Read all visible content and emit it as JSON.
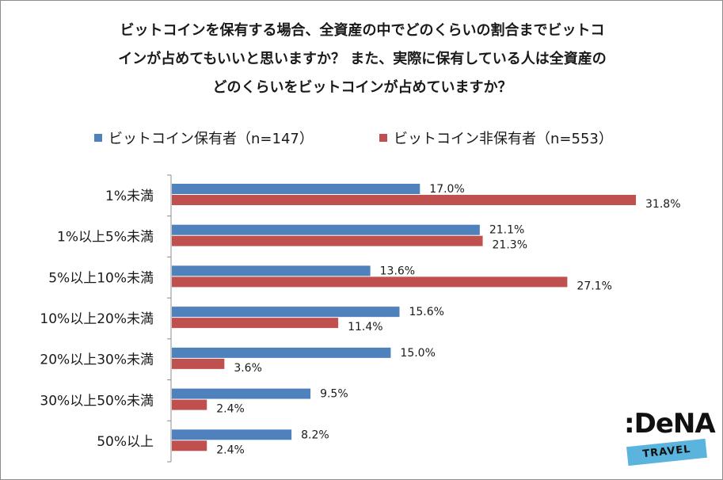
{
  "chart_data": {
    "type": "bar",
    "orientation": "horizontal",
    "title_lines": [
      "ビットコインを保有する場合、全資産の中でどのくらいの割合までビットコ",
      "インが占めてもいいと思いますか？ また、実際に保有している人は全資産の",
      "どのくらいをビットコインが占めていますか？"
    ],
    "categories": [
      "1%未満",
      "1%以上5%未満",
      "5%以上10%未満",
      "10%以上20%未満",
      "20%以上30%未満",
      "30%以上50%未満",
      "50%以上"
    ],
    "series": [
      {
        "name": "ビットコイン保有者（n=147）",
        "color": "#4f81bd",
        "values": [
          17.0,
          21.1,
          13.6,
          15.6,
          15.0,
          9.5,
          8.2
        ]
      },
      {
        "name": "ビットコイン非保有者（n=553）",
        "color": "#c0504d",
        "values": [
          31.8,
          21.3,
          27.1,
          11.4,
          3.6,
          2.4,
          2.4
        ]
      }
    ],
    "value_format": "%",
    "xlim": [
      0,
      35
    ],
    "grid": false,
    "legend_position": "top"
  },
  "brand": {
    "name": ":DeNA",
    "sub": "TRAVEL"
  }
}
